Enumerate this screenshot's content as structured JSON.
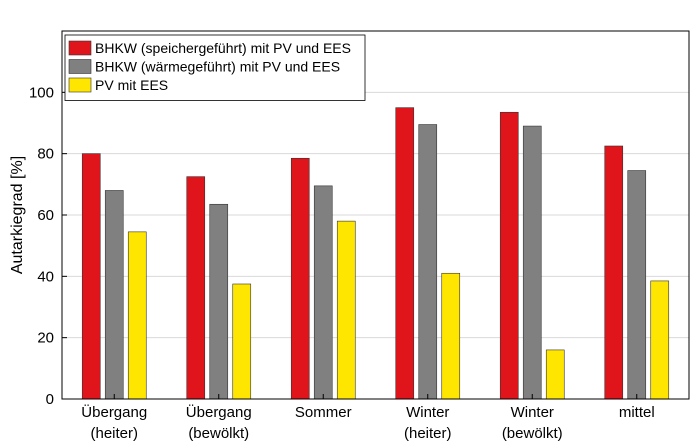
{
  "chart_data": {
    "type": "bar",
    "ylabel": "Autarkiegrad [%]",
    "ylim": [
      0,
      120
    ],
    "yticks": [
      0,
      20,
      40,
      60,
      80,
      100
    ],
    "grid": true,
    "legend_position": "top-left",
    "categories": [
      [
        "Übergang",
        "(heiter)"
      ],
      [
        "Übergang",
        "(bewölkt)"
      ],
      [
        "Sommer"
      ],
      [
        "Winter",
        "(heiter)"
      ],
      [
        "Winter",
        "(bewölkt)"
      ],
      [
        "mittel"
      ]
    ],
    "series": [
      {
        "name": "BHKW (speichergeführt) mit PV und EES",
        "color": "#e0151b",
        "values": [
          80,
          72.5,
          78.5,
          95,
          93.5,
          82.5
        ]
      },
      {
        "name": "BHKW (wärmegeführt) mit PV und EES",
        "color": "#808080",
        "values": [
          68,
          63.5,
          69.5,
          89.5,
          89,
          74.5
        ]
      },
      {
        "name": "PV mit EES",
        "color": "#ffe600",
        "values": [
          54.5,
          37.5,
          58,
          41,
          16,
          38.5
        ]
      }
    ]
  }
}
